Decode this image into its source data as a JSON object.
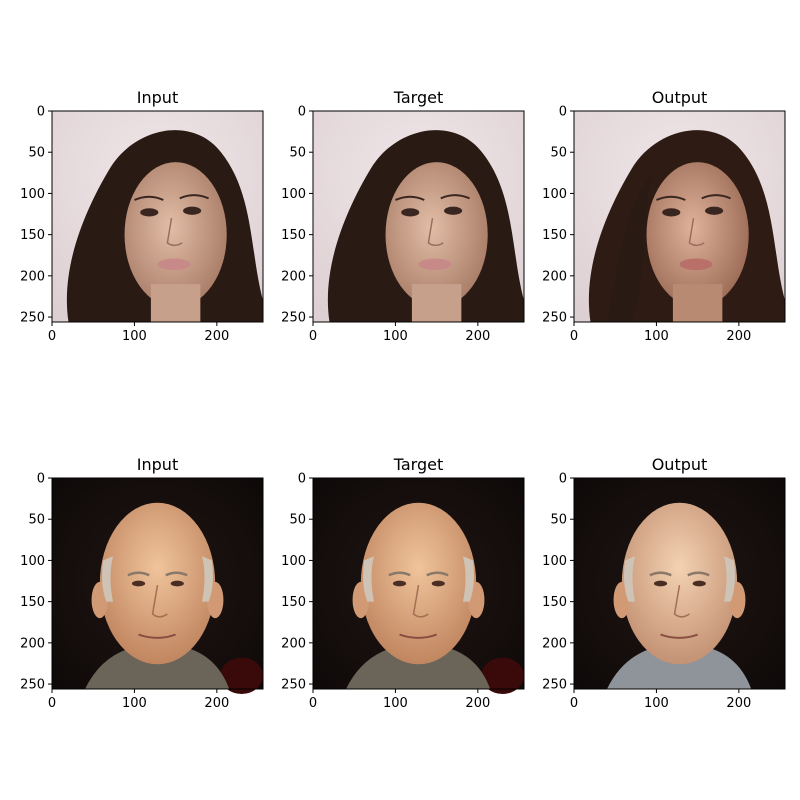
{
  "chart_data": [
    {
      "type": "image",
      "title": "Input",
      "xticks": [
        "0",
        "100",
        "200"
      ],
      "yticks": [
        "0",
        "50",
        "100",
        "150",
        "200",
        "250"
      ],
      "xlim": [
        0,
        256
      ],
      "ylim": [
        256,
        0
      ],
      "image_theme": "woman-light-bg"
    },
    {
      "type": "image",
      "title": "Target",
      "xticks": [
        "0",
        "100",
        "200"
      ],
      "yticks": [
        "0",
        "50",
        "100",
        "150",
        "200",
        "250"
      ],
      "xlim": [
        0,
        256
      ],
      "ylim": [
        256,
        0
      ],
      "image_theme": "woman-light-bg"
    },
    {
      "type": "image",
      "title": "Output",
      "xticks": [
        "0",
        "100",
        "200"
      ],
      "yticks": [
        "0",
        "50",
        "100",
        "150",
        "200",
        "250"
      ],
      "xlim": [
        0,
        256
      ],
      "ylim": [
        256,
        0
      ],
      "image_theme": "woman-light-bg-smooth"
    },
    {
      "type": "image",
      "title": "Input",
      "xticks": [
        "0",
        "100",
        "200"
      ],
      "yticks": [
        "0",
        "50",
        "100",
        "150",
        "200",
        "250"
      ],
      "xlim": [
        0,
        256
      ],
      "ylim": [
        256,
        0
      ],
      "image_theme": "man-dark-bg"
    },
    {
      "type": "image",
      "title": "Target",
      "xticks": [
        "0",
        "100",
        "200"
      ],
      "yticks": [
        "0",
        "50",
        "100",
        "150",
        "200",
        "250"
      ],
      "xlim": [
        0,
        256
      ],
      "ylim": [
        256,
        0
      ],
      "image_theme": "man-dark-bg"
    },
    {
      "type": "image",
      "title": "Output",
      "xticks": [
        "0",
        "100",
        "200"
      ],
      "yticks": [
        "0",
        "50",
        "100",
        "150",
        "200",
        "250"
      ],
      "xlim": [
        0,
        256
      ],
      "ylim": [
        256,
        0
      ],
      "image_theme": "man-dark-bg-smooth"
    }
  ],
  "colors": {
    "light_bg": "#e8dcdf",
    "dark_bg": "#120d0b",
    "hair_dark": "#2a1a14",
    "skin_woman": "#caa08a",
    "skin_man": "#d9a47e",
    "hair_gray": "#cfc3b6"
  }
}
